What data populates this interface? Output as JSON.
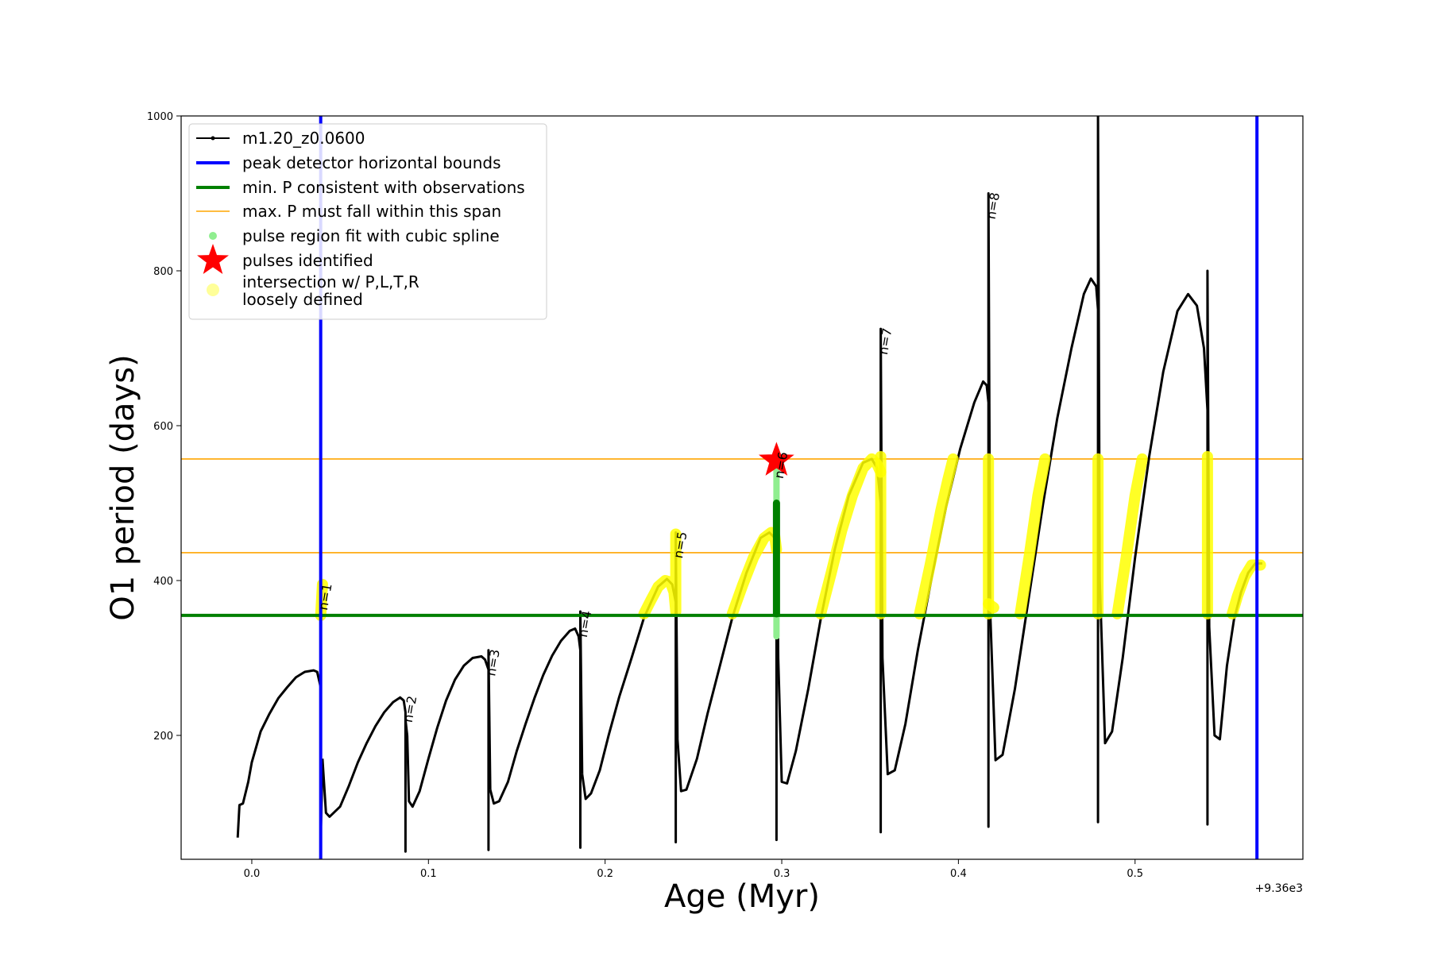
{
  "chart_data": {
    "type": "line",
    "xlabel": "Age (Myr)",
    "ylabel": "O1 period (days)",
    "x_offset_label": "+9.36e3",
    "xlim": [
      -0.04,
      0.595
    ],
    "ylim": [
      40,
      1000
    ],
    "x_ticks": [
      0.0,
      0.1,
      0.2,
      0.3,
      0.4,
      0.5
    ],
    "x_tick_labels": [
      "0.0",
      "0.1",
      "0.2",
      "0.3",
      "0.4",
      "0.5"
    ],
    "y_ticks": [
      200,
      400,
      600,
      800,
      1000
    ],
    "y_tick_labels": [
      "200",
      "400",
      "600",
      "800",
      "1000"
    ],
    "grid": false,
    "legend_position": "top-left",
    "legend": [
      {
        "label": "m1.20_z0.0600",
        "kind": "line-marker",
        "color": "#000000"
      },
      {
        "label": "peak detector horizontal bounds",
        "kind": "line",
        "color": "#0000ff"
      },
      {
        "label": "min. P consistent with observations",
        "kind": "line",
        "color": "#008000"
      },
      {
        "label": "max. P must fall within this span",
        "kind": "thin-line",
        "color": "#ffa500"
      },
      {
        "label": "pulse region fit with cubic spline",
        "kind": "dot",
        "color": "#90ee90"
      },
      {
        "label": "pulses identified",
        "kind": "star",
        "color": "#ff0000"
      },
      {
        "label": "intersection w/ P,L,T,R\nloosely defined",
        "kind": "big-dot",
        "color": "#ffff99"
      }
    ],
    "vertical_bounds": [
      0.039,
      0.569
    ],
    "min_period": 355,
    "max_period_span": [
      436,
      557
    ],
    "pulse_star": {
      "x": 0.297,
      "y": 555
    },
    "pulse_labels": [
      {
        "text": "n=1",
        "x": 0.039,
        "y": 395
      },
      {
        "text": "n=2",
        "x": 0.087,
        "y": 250
      },
      {
        "text": "n=3",
        "x": 0.134,
        "y": 310
      },
      {
        "text": "n=4",
        "x": 0.186,
        "y": 360
      },
      {
        "text": "n=5",
        "x": 0.24,
        "y": 462
      },
      {
        "text": "n=6",
        "x": 0.297,
        "y": 565
      },
      {
        "text": "n=7",
        "x": 0.356,
        "y": 725
      },
      {
        "text": "n=8",
        "x": 0.417,
        "y": 900
      }
    ],
    "series": [
      {
        "name": "m1.20_z0.0600",
        "cycles": [
          {
            "x": [
              -0.008,
              -0.007,
              -0.005,
              -0.002,
              0.0,
              0.005,
              0.01,
              0.015,
              0.02,
              0.025,
              0.03,
              0.035,
              0.037,
              0.039,
              0.039,
              0.039,
              0.04
            ],
            "y": [
              68,
              110,
              112,
              140,
              165,
              205,
              228,
              248,
              262,
              275,
              282,
              284,
              282,
              262,
              400,
              70,
              160
            ]
          },
          {
            "x": [
              0.04,
              0.042,
              0.044,
              0.05,
              0.055,
              0.06,
              0.065,
              0.07,
              0.075,
              0.08,
              0.084,
              0.086,
              0.087,
              0.087,
              0.087,
              0.088
            ],
            "y": [
              170,
              100,
              95,
              108,
              135,
              165,
              190,
              212,
              230,
              243,
              249,
              245,
              230,
              50,
              220,
              200
            ]
          },
          {
            "x": [
              0.088,
              0.089,
              0.091,
              0.095,
              0.1,
              0.105,
              0.11,
              0.115,
              0.12,
              0.125,
              0.13,
              0.132,
              0.134,
              0.134,
              0.134,
              0.135
            ],
            "y": [
              200,
              115,
              108,
              128,
              170,
              210,
              245,
              272,
              290,
              300,
              302,
              298,
              285,
              52,
              310,
              130
            ]
          },
          {
            "x": [
              0.135,
              0.137,
              0.14,
              0.145,
              0.15,
              0.155,
              0.16,
              0.165,
              0.17,
              0.175,
              0.18,
              0.183,
              0.185,
              0.186,
              0.186,
              0.186,
              0.187
            ],
            "y": [
              130,
              112,
              115,
              140,
              180,
              215,
              248,
              278,
              303,
              322,
              335,
              338,
              328,
              310,
              55,
              360,
              150
            ]
          },
          {
            "x": [
              0.187,
              0.189,
              0.192,
              0.197,
              0.202,
              0.208,
              0.215,
              0.222,
              0.23,
              0.235,
              0.238,
              0.24,
              0.24,
              0.24,
              0.241
            ],
            "y": [
              150,
              118,
              125,
              155,
              200,
              250,
              300,
              352,
              392,
              402,
              395,
              372,
              62,
              462,
              195
            ]
          },
          {
            "x": [
              0.241,
              0.243,
              0.246,
              0.252,
              0.258,
              0.265,
              0.272,
              0.28,
              0.288,
              0.293,
              0.296,
              0.297,
              0.297,
              0.297,
              0.298
            ],
            "y": [
              195,
              128,
              130,
              170,
              228,
              290,
              352,
              410,
              455,
              462,
              455,
              440,
              65,
              565,
              300
            ]
          },
          {
            "x": [
              0.298,
              0.3,
              0.303,
              0.308,
              0.315,
              0.322,
              0.33,
              0.338,
              0.346,
              0.351,
              0.354,
              0.356,
              0.356,
              0.356,
              0.357
            ],
            "y": [
              300,
              140,
              138,
              180,
              260,
              350,
              440,
              510,
              552,
              557,
              545,
              500,
              75,
              725,
              300
            ]
          },
          {
            "x": [
              0.357,
              0.36,
              0.364,
              0.37,
              0.377,
              0.385,
              0.393,
              0.401,
              0.409,
              0.414,
              0.416,
              0.417,
              0.417,
              0.417,
              0.418
            ],
            "y": [
              300,
              150,
              155,
              215,
              310,
              405,
              495,
              570,
              630,
              657,
              652,
              630,
              82,
              900,
              360
            ]
          },
          {
            "x": [
              0.418,
              0.421,
              0.425,
              0.432,
              0.44,
              0.448,
              0.456,
              0.464,
              0.471,
              0.475,
              0.478,
              0.479,
              0.479,
              0.479,
              0.48
            ],
            "y": [
              360,
              168,
              175,
              260,
              380,
              500,
              610,
              700,
              770,
              790,
              780,
              750,
              88,
              1000,
              400
            ]
          },
          {
            "x": [
              0.48,
              0.483,
              0.487,
              0.493,
              0.5,
              0.508,
              0.516,
              0.524,
              0.53,
              0.535,
              0.539,
              0.541,
              0.541,
              0.541,
              0.542
            ],
            "y": [
              400,
              190,
              205,
              300,
              430,
              560,
              670,
              748,
              770,
              755,
              700,
              620,
              85,
              800,
              340
            ]
          },
          {
            "x": [
              0.542,
              0.545,
              0.548,
              0.552,
              0.556,
              0.56,
              0.564,
              0.568,
              0.572
            ],
            "y": [
              340,
              200,
              195,
              290,
              350,
              385,
              410,
              422,
              422
            ]
          }
        ]
      }
    ],
    "yellow_segments": [
      {
        "x": [
          0.039,
          0.04
        ],
        "y": [
          355,
          395
        ]
      },
      {
        "x": [
          0.222,
          0.226,
          0.23,
          0.234,
          0.237,
          0.239,
          0.24,
          0.24
        ],
        "y": [
          357,
          375,
          392,
          400,
          398,
          385,
          360,
          460
        ]
      },
      {
        "x": [
          0.272,
          0.278,
          0.284,
          0.29,
          0.294,
          0.296,
          0.297
        ],
        "y": [
          357,
          395,
          430,
          455,
          462,
          458,
          440
        ]
      },
      {
        "x": [
          0.322,
          0.328,
          0.334,
          0.34,
          0.346,
          0.351,
          0.354,
          0.356
        ],
        "y": [
          357,
          410,
          465,
          510,
          545,
          557,
          550,
          540
        ]
      },
      {
        "x": [
          0.356,
          0.356
        ],
        "y": [
          357,
          560
        ]
      },
      {
        "x": [
          0.378,
          0.384,
          0.39,
          0.394,
          0.397
        ],
        "y": [
          357,
          420,
          490,
          530,
          557
        ]
      },
      {
        "x": [
          0.417,
          0.417
        ],
        "y": [
          357,
          557
        ]
      },
      {
        "x": [
          0.417,
          0.42
        ],
        "y": [
          370,
          365
        ]
      },
      {
        "x": [
          0.435,
          0.44,
          0.445,
          0.449
        ],
        "y": [
          357,
          430,
          510,
          557
        ]
      },
      {
        "x": [
          0.479,
          0.479
        ],
        "y": [
          357,
          557
        ]
      },
      {
        "x": [
          0.49,
          0.495,
          0.5,
          0.504
        ],
        "y": [
          357,
          430,
          510,
          557
        ]
      },
      {
        "x": [
          0.541,
          0.541
        ],
        "y": [
          357,
          560
        ]
      },
      {
        "x": [
          0.555,
          0.558,
          0.562,
          0.566,
          0.571
        ],
        "y": [
          357,
          380,
          405,
          420,
          420
        ]
      }
    ],
    "green_segments": [
      {
        "x": [
          0.297,
          0.297
        ],
        "y": [
          328,
          545
        ]
      }
    ],
    "dark_green_segments": [
      {
        "x": [
          0.297,
          0.297
        ],
        "y": [
          357,
          500
        ]
      }
    ],
    "colors": {
      "curve": "#000000",
      "bounds": "#0000ff",
      "min_period": "#008000",
      "span": "#ffa500",
      "spline": "#90ee90",
      "pulse": "#ff0000",
      "intersection": "#ffff00",
      "legend_intersection": "#ffff99"
    }
  }
}
